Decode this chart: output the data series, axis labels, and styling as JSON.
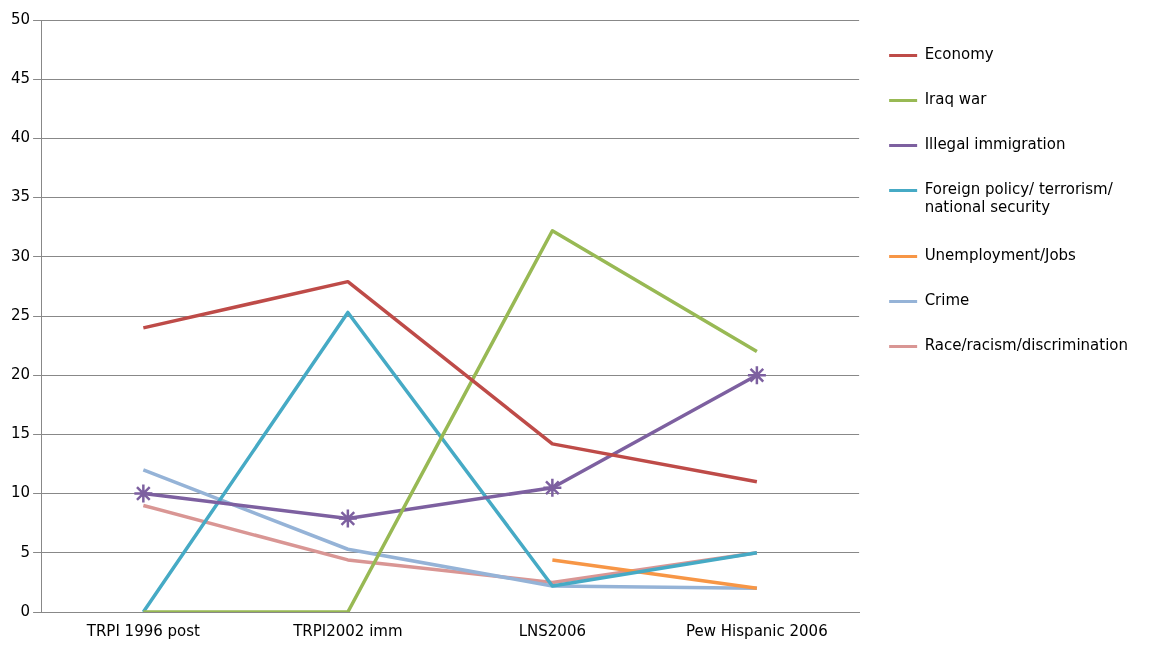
{
  "chart_data": {
    "type": "line",
    "categories": [
      "TRPI 1996 post",
      "TRPI2002 imm",
      "LNS2006",
      "Pew Hispanic 2006"
    ],
    "series": [
      {
        "name": "Economy",
        "color": "#be4b48",
        "values": [
          24,
          27.9,
          14.2,
          11
        ],
        "marker": "none"
      },
      {
        "name": "Iraq war",
        "color": "#98b954",
        "values": [
          0,
          0,
          32.2,
          22
        ],
        "marker": "none"
      },
      {
        "name": "Illegal immigration",
        "color": "#7d60a0",
        "values": [
          10,
          7.9,
          10.5,
          20
        ],
        "marker": "cross"
      },
      {
        "name": "Foreign policy/ terrorism/ national security",
        "color": "#46aac5",
        "values": [
          0,
          25.3,
          2.2,
          5
        ],
        "marker": "none"
      },
      {
        "name": "Unemployment/Jobs",
        "color": "#f79646",
        "values": [
          null,
          null,
          4.4,
          2
        ],
        "marker": "none"
      },
      {
        "name": "Crime",
        "color": "#95b3d7",
        "values": [
          12,
          5.3,
          2.2,
          2
        ],
        "marker": "none"
      },
      {
        "name": "Race/racism/discrimination",
        "color": "#d99694",
        "values": [
          9,
          4.4,
          2.5,
          5
        ],
        "marker": "none"
      }
    ],
    "ylim": [
      0,
      50
    ],
    "yticks": [
      0,
      5,
      10,
      15,
      20,
      25,
      30,
      35,
      40,
      45,
      50
    ],
    "grid": "y",
    "legend": "right",
    "line_style": "solid"
  }
}
